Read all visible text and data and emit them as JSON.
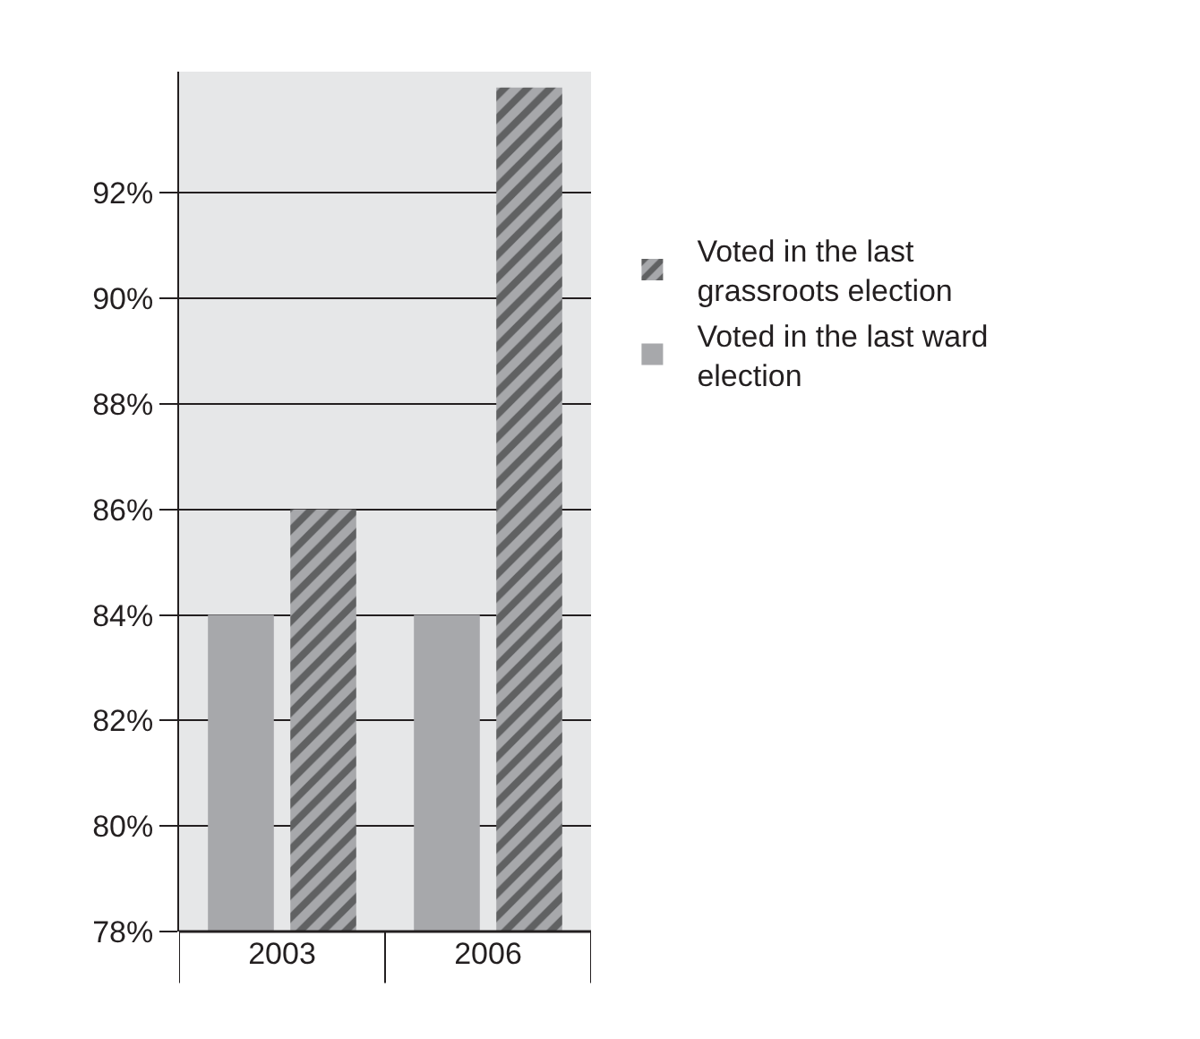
{
  "chart_data": {
    "type": "bar",
    "categories": [
      "2003",
      "2006"
    ],
    "series": [
      {
        "name": "Voted in the last ward election",
        "color": "#a7a8ab",
        "values": [
          84,
          84
        ]
      },
      {
        "name": "Voted in the last grassroots election",
        "color": "#a7a8ab",
        "values": [
          86,
          94
        ]
      }
    ],
    "ylim": [
      78,
      94.3
    ],
    "yticks": [
      {
        "value": 78,
        "label": "78%"
      },
      {
        "value": 80,
        "label": "80%"
      },
      {
        "value": 82,
        "label": "82%"
      },
      {
        "value": 84,
        "label": "84%"
      },
      {
        "value": 86,
        "label": "86%"
      },
      {
        "value": 88,
        "label": "88%"
      },
      {
        "value": 90,
        "label": "90%"
      },
      {
        "value": 92,
        "label": "92%"
      }
    ],
    "grid": "y",
    "legend": "right"
  }
}
